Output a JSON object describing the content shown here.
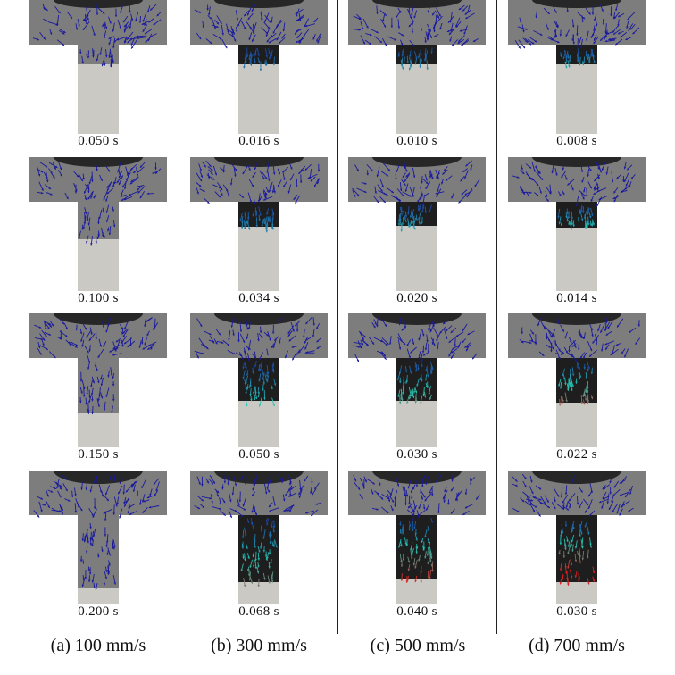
{
  "figure": {
    "columns": [
      {
        "label": "(a) 100 mm/s",
        "times": [
          "0.050 s",
          "0.100 s",
          "0.150 s",
          "0.200 s"
        ],
        "fill": [
          0.0,
          0.0,
          0.0,
          0.0
        ],
        "intensity": 0.0
      },
      {
        "label": "(b) 300 mm/s",
        "times": [
          "0.016 s",
          "0.034 s",
          "0.050 s",
          "0.068 s"
        ],
        "fill": [
          0.0,
          0.28,
          0.48,
          0.75
        ],
        "intensity": 0.55
      },
      {
        "label": "(c) 500 mm/s",
        "times": [
          "0.010 s",
          "0.020 s",
          "0.030 s",
          "0.040 s"
        ],
        "fill": [
          0.0,
          0.27,
          0.48,
          0.72
        ],
        "intensity": 0.8
      },
      {
        "label": "(d) 700 mm/s",
        "times": [
          "0.008 s",
          "0.014 s",
          "0.022 s",
          "0.030 s"
        ],
        "fill": [
          0.0,
          0.29,
          0.5,
          0.75
        ],
        "intensity": 1.0
      }
    ],
    "colors": {
      "mold": "#7d7d7d",
      "punch": "#cbc9c3",
      "arrows_low": "#1a1aa0",
      "arrows_mid": "#22c8b4",
      "arrows_high": "#e02020",
      "dark_zone": "#1e1e1e"
    }
  }
}
